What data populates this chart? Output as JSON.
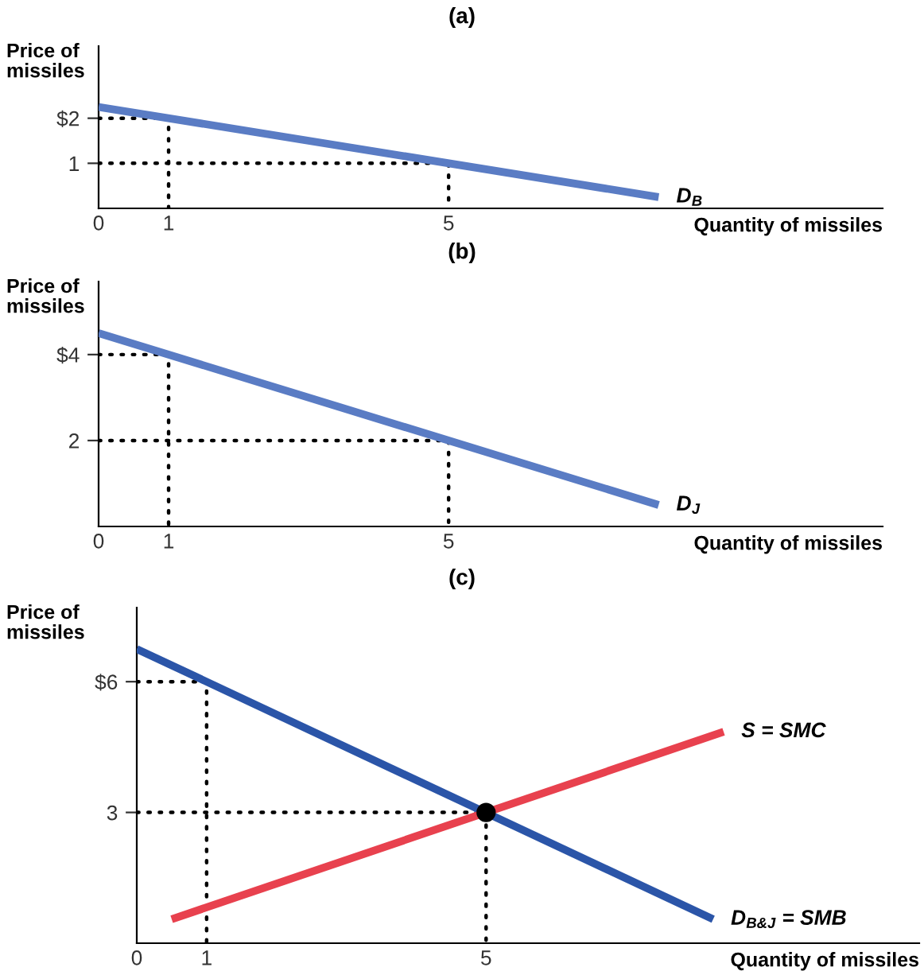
{
  "chart_data": [
    {
      "type": "line",
      "title": "(a)",
      "ylabel": "Price of\nmissiles",
      "xlabel": "Quantity of missiles",
      "xlim": [
        0,
        11.2
      ],
      "ylim": [
        0,
        3.6
      ],
      "xticks": [
        0,
        1,
        5
      ],
      "yticks": [
        1,
        {
          "value": 2,
          "label": "$2"
        }
      ],
      "grid": false,
      "legend": false,
      "marker": "none",
      "series": [
        {
          "name": "D$_{B}$",
          "color": "#5a7cc4",
          "x": [
            0,
            8
          ],
          "values": [
            2.25,
            0.25
          ]
        },
        {
          "color": "#000000",
          "line_style": "dotted",
          "x": [
            0,
            1,
            1
          ],
          "values": [
            2,
            2,
            0
          ]
        },
        {
          "color": "#000000",
          "line_style": "dotted",
          "x": [
            0,
            5,
            5
          ],
          "values": [
            1,
            1,
            0
          ]
        }
      ]
    },
    {
      "type": "line",
      "title": "(b)",
      "ylabel": "Price of\nmissiles",
      "xlabel": "Quantity of missiles",
      "xlim": [
        0,
        11.2
      ],
      "ylim": [
        0,
        5.7
      ],
      "xticks": [
        0,
        1,
        5
      ],
      "yticks": [
        2,
        {
          "value": 4,
          "label": "$4"
        }
      ],
      "grid": false,
      "legend": false,
      "marker": "none",
      "series": [
        {
          "name": "D$_{J}$",
          "color": "#5a7cc4",
          "x": [
            0,
            8
          ],
          "values": [
            4.5,
            0.5
          ]
        },
        {
          "color": "#000000",
          "line_style": "dotted",
          "x": [
            0,
            1,
            1
          ],
          "values": [
            4,
            4,
            0
          ]
        },
        {
          "color": "#000000",
          "line_style": "dotted",
          "x": [
            0,
            5,
            5
          ],
          "values": [
            2,
            2,
            0
          ]
        }
      ]
    },
    {
      "type": "line",
      "title": "(c)",
      "ylabel": "Price of\nmissiles",
      "xlabel": "Quantity of missiles",
      "xlim": [
        0,
        11.2
      ],
      "ylim": [
        0,
        7.7
      ],
      "xticks": [
        0,
        1,
        5
      ],
      "yticks": [
        3,
        {
          "value": 6,
          "label": "$6"
        }
      ],
      "grid": false,
      "legend": false,
      "marker": "none",
      "series": [
        {
          "color": "#000000",
          "line_style": "dotted",
          "x": [
            0,
            1,
            1
          ],
          "values": [
            6,
            6,
            0
          ]
        },
        {
          "color": "#000000",
          "line_style": "dotted",
          "x": [
            0,
            5,
            5
          ],
          "values": [
            3,
            3,
            0
          ]
        },
        {
          "name": "D$_{B&J}$ = SMB",
          "color": "#2b55a8",
          "x": [
            0,
            8.25
          ],
          "values": [
            6.75,
            0.55
          ]
        },
        {
          "name": "S = SMC",
          "color": "#e8414e",
          "x": [
            0.5,
            8.4
          ],
          "values": [
            0.55,
            4.85
          ]
        },
        {
          "type": "scatter",
          "color": "#000000",
          "marker": "circle",
          "x": [
            5
          ],
          "values": [
            3
          ]
        }
      ]
    }
  ]
}
